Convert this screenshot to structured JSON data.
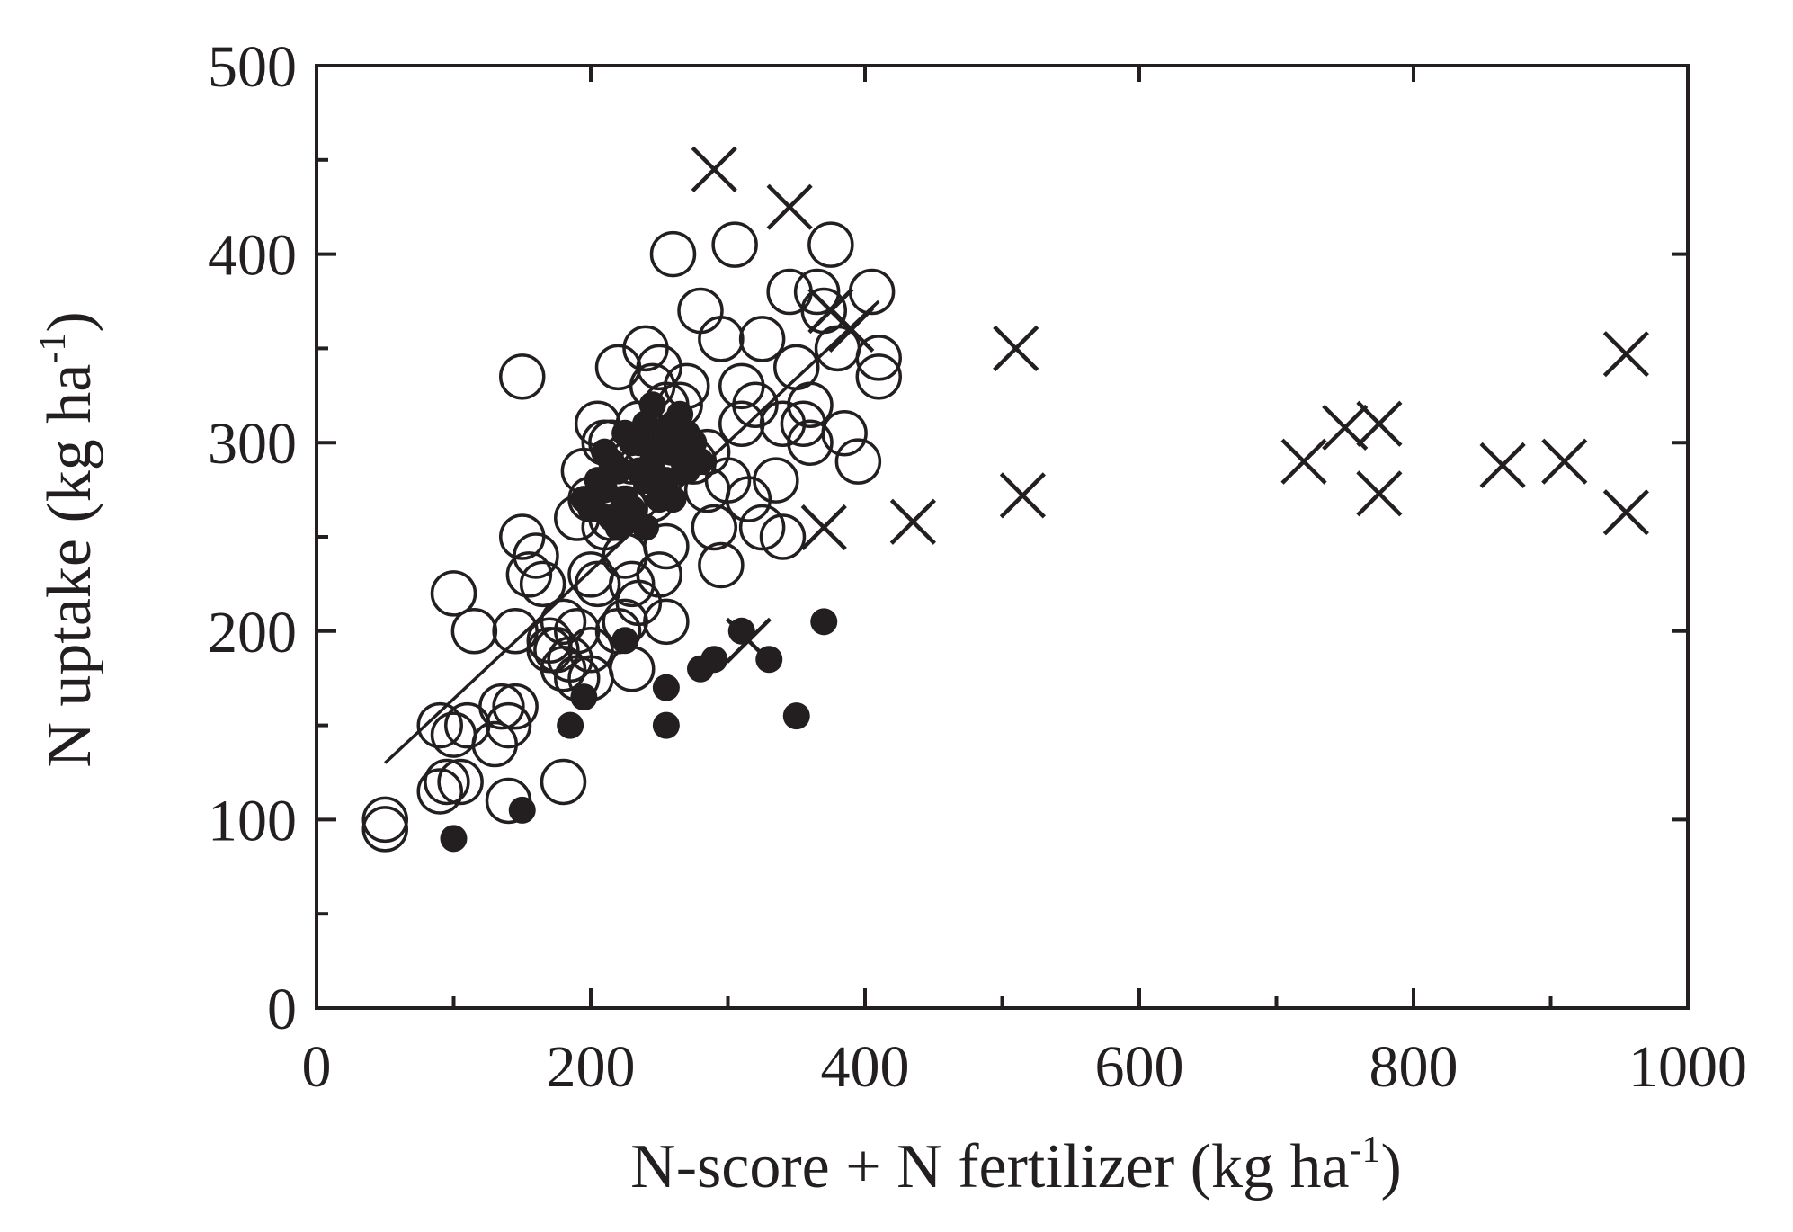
{
  "chart_data": {
    "type": "scatter",
    "xlabel": "N-score + N fertilizer (kg ha",
    "xlabel_sup": "-1",
    "xlabel_end": ")",
    "ylabel": "N uptake (kg ha",
    "ylabel_sup": "-1",
    "ylabel_end": ")",
    "xlim": [
      0,
      1000
    ],
    "ylim": [
      0,
      500
    ],
    "x_ticks": [
      0,
      200,
      400,
      600,
      800,
      1000
    ],
    "y_ticks": [
      0,
      100,
      200,
      300,
      400,
      500
    ],
    "x_ticks_minor": 100,
    "y_ticks_minor": 50,
    "grid": false,
    "legend": "none",
    "colors": {
      "ink": "#231f20"
    },
    "series": [
      {
        "marker": "open-circle",
        "points": [
          [
            50,
            95
          ],
          [
            50,
            100
          ],
          [
            90,
            115
          ],
          [
            95,
            120
          ],
          [
            105,
            120
          ],
          [
            90,
            150
          ],
          [
            100,
            145
          ],
          [
            110,
            150
          ],
          [
            100,
            220
          ],
          [
            115,
            200
          ],
          [
            130,
            140
          ],
          [
            135,
            160
          ],
          [
            140,
            150
          ],
          [
            145,
            160
          ],
          [
            140,
            110
          ],
          [
            145,
            200
          ],
          [
            150,
            250
          ],
          [
            150,
            335
          ],
          [
            160,
            240
          ],
          [
            155,
            230
          ],
          [
            165,
            225
          ],
          [
            170,
            195
          ],
          [
            175,
            190
          ],
          [
            180,
            180
          ],
          [
            180,
            120
          ],
          [
            185,
            185
          ],
          [
            190,
            175
          ],
          [
            190,
            260
          ],
          [
            195,
            285
          ],
          [
            200,
            190
          ],
          [
            200,
            175
          ],
          [
            200,
            270
          ],
          [
            205,
            310
          ],
          [
            210,
            300
          ],
          [
            215,
            260
          ],
          [
            220,
            340
          ],
          [
            220,
            280
          ],
          [
            225,
            265
          ],
          [
            225,
            205
          ],
          [
            230,
            225
          ],
          [
            230,
            180
          ],
          [
            235,
            310
          ],
          [
            240,
            350
          ],
          [
            245,
            330
          ],
          [
            250,
            340
          ],
          [
            255,
            320
          ],
          [
            255,
            245
          ],
          [
            255,
            205
          ],
          [
            260,
            300
          ],
          [
            260,
            400
          ],
          [
            265,
            320
          ],
          [
            270,
            330
          ],
          [
            275,
            290
          ],
          [
            280,
            370
          ],
          [
            285,
            275
          ],
          [
            290,
            255
          ],
          [
            295,
            235
          ],
          [
            295,
            355
          ],
          [
            305,
            405
          ],
          [
            310,
            330
          ],
          [
            310,
            310
          ],
          [
            315,
            270
          ],
          [
            320,
            320
          ],
          [
            325,
            255
          ],
          [
            325,
            355
          ],
          [
            335,
            280
          ],
          [
            340,
            310
          ],
          [
            340,
            250
          ],
          [
            345,
            380
          ],
          [
            350,
            340
          ],
          [
            355,
            310
          ],
          [
            360,
            320
          ],
          [
            360,
            300
          ],
          [
            365,
            380
          ],
          [
            370,
            370
          ],
          [
            375,
            405
          ],
          [
            380,
            350
          ],
          [
            385,
            305
          ],
          [
            395,
            290
          ],
          [
            405,
            380
          ],
          [
            410,
            345
          ],
          [
            410,
            335
          ],
          [
            240,
            300
          ],
          [
            230,
            290
          ],
          [
            215,
            300
          ],
          [
            265,
            290
          ],
          [
            245,
            270
          ],
          [
            250,
            280
          ],
          [
            300,
            280
          ],
          [
            285,
            295
          ],
          [
            210,
            255
          ],
          [
            225,
            240
          ],
          [
            200,
            230
          ],
          [
            190,
            200
          ],
          [
            180,
            205
          ],
          [
            170,
            190
          ],
          [
            235,
            215
          ],
          [
            250,
            230
          ],
          [
            220,
            200
          ],
          [
            205,
            225
          ]
        ]
      },
      {
        "marker": "filled-circle",
        "points": [
          [
            195,
            270
          ],
          [
            200,
            265
          ],
          [
            205,
            280
          ],
          [
            210,
            275
          ],
          [
            215,
            290
          ],
          [
            220,
            255
          ],
          [
            225,
            270
          ],
          [
            230,
            300
          ],
          [
            235,
            285
          ],
          [
            240,
            310
          ],
          [
            245,
            320
          ],
          [
            250,
            295
          ],
          [
            255,
            280
          ],
          [
            260,
            310
          ],
          [
            265,
            295
          ],
          [
            270,
            285
          ],
          [
            275,
            300
          ],
          [
            280,
            290
          ],
          [
            230,
            265
          ],
          [
            240,
            255
          ],
          [
            250,
            270
          ],
          [
            220,
            285
          ],
          [
            260,
            270
          ],
          [
            215,
            260
          ],
          [
            235,
            300
          ],
          [
            245,
            290
          ],
          [
            225,
            305
          ],
          [
            255,
            305
          ],
          [
            265,
            315
          ],
          [
            210,
            295
          ],
          [
            240,
            280
          ],
          [
            270,
            305
          ],
          [
            100,
            90
          ],
          [
            150,
            105
          ],
          [
            185,
            150
          ],
          [
            195,
            165
          ],
          [
            225,
            195
          ],
          [
            255,
            170
          ],
          [
            255,
            150
          ],
          [
            280,
            180
          ],
          [
            290,
            185
          ],
          [
            310,
            200
          ],
          [
            330,
            185
          ],
          [
            350,
            155
          ],
          [
            370,
            205
          ]
        ]
      },
      {
        "marker": "cross",
        "points": [
          [
            290,
            445
          ],
          [
            345,
            425
          ],
          [
            375,
            370
          ],
          [
            390,
            360
          ],
          [
            370,
            255
          ],
          [
            435,
            258
          ],
          [
            510,
            350
          ],
          [
            515,
            272
          ],
          [
            720,
            290
          ],
          [
            750,
            308
          ],
          [
            775,
            310
          ],
          [
            775,
            273
          ],
          [
            865,
            288
          ],
          [
            910,
            290
          ],
          [
            955,
            347
          ],
          [
            955,
            263
          ],
          [
            315,
            195
          ]
        ]
      }
    ],
    "fit_lines": [
      {
        "x": [
          50,
          410
        ],
        "y": [
          130,
          375
        ]
      }
    ]
  }
}
